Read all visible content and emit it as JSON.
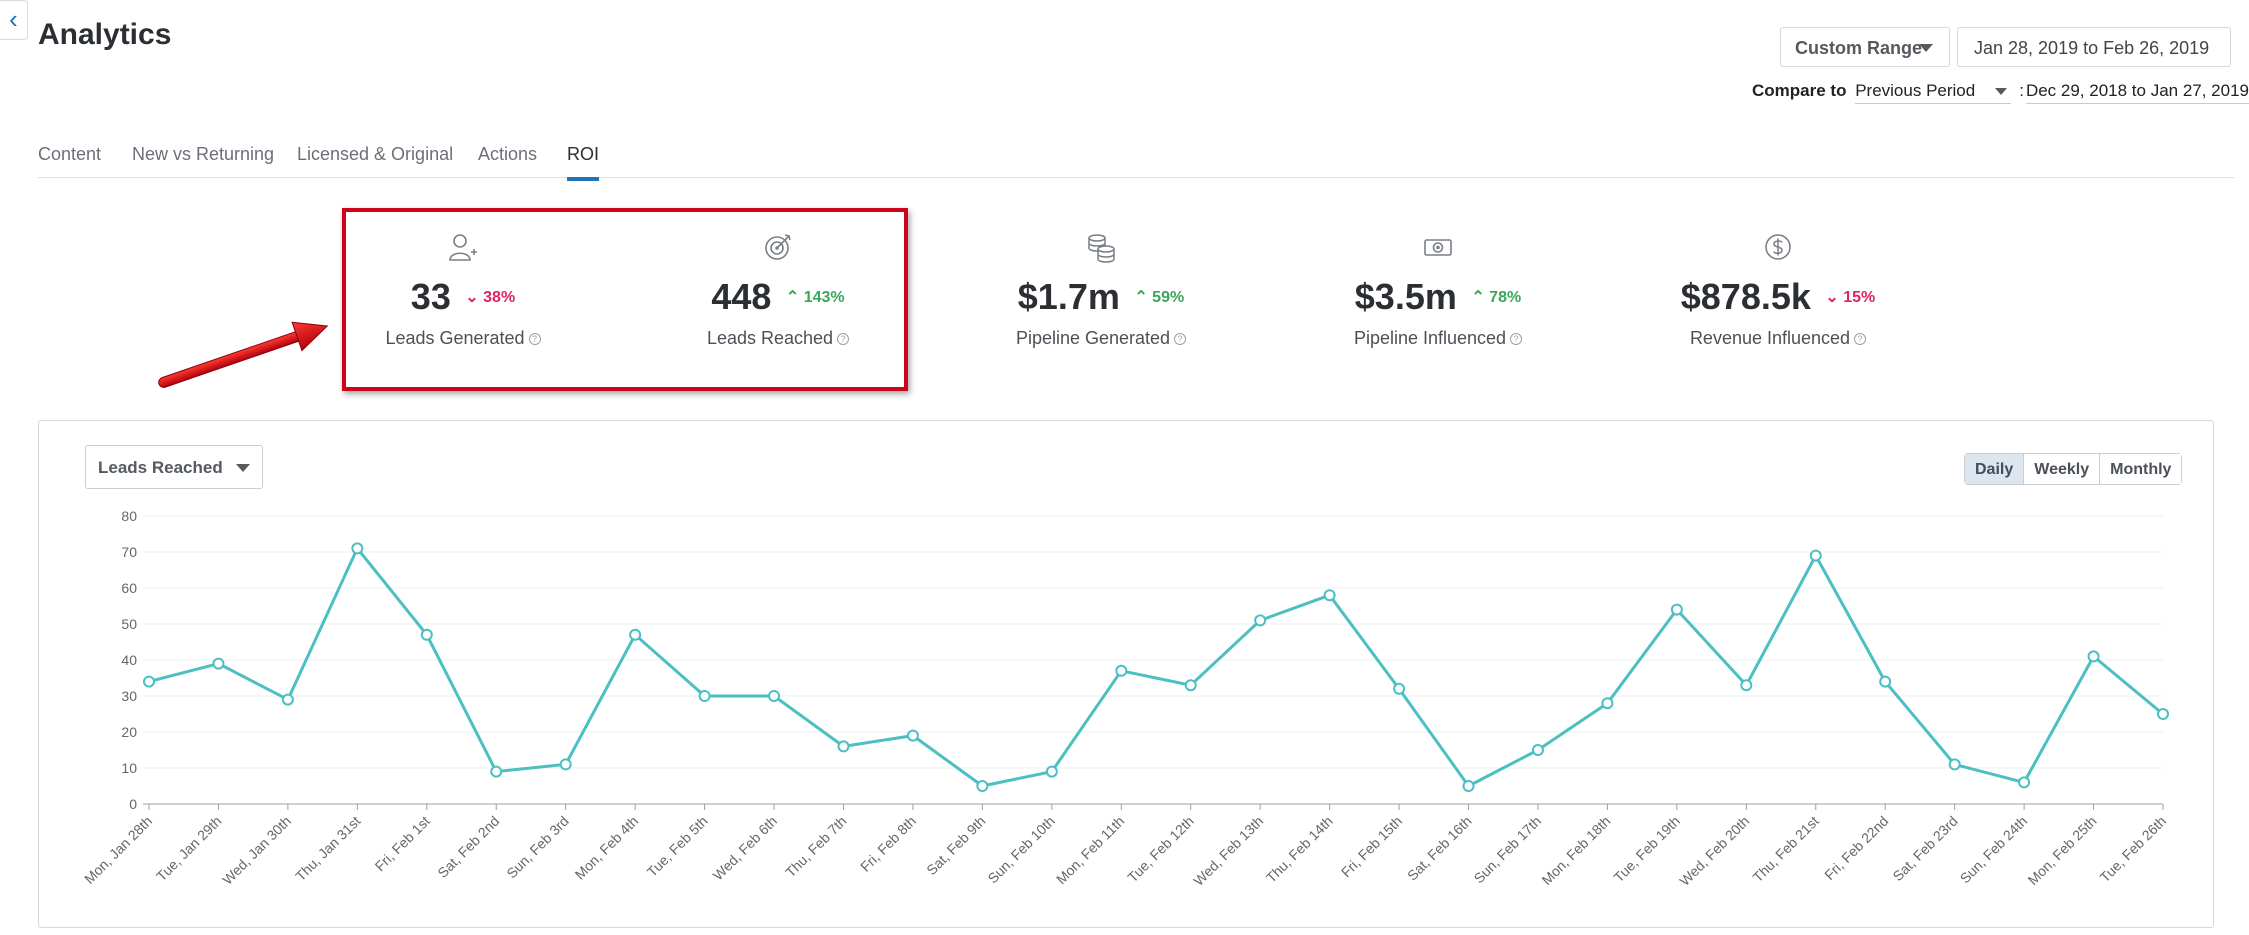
{
  "header": {
    "back_icon": "chevron-left-icon",
    "title": "Analytics",
    "range_type": "Custom Range",
    "date_range": "Jan 28, 2019 to Feb 26, 2019",
    "compare_label": "Compare to",
    "compare_period": "Previous Period",
    "compare_colon": ":",
    "compare_range": "Dec 29, 2018 to Jan 27, 2019"
  },
  "tabs": [
    {
      "label": "Content",
      "active": false
    },
    {
      "label": "New vs Returning",
      "active": false
    },
    {
      "label": "Licensed & Original",
      "active": false
    },
    {
      "label": "Actions",
      "active": false
    },
    {
      "label": "ROI",
      "active": true
    }
  ],
  "metrics": [
    {
      "icon": "user-plus-icon",
      "value": "33",
      "delta": "38%",
      "direction": "down",
      "label": "Leads Generated"
    },
    {
      "icon": "target-icon",
      "value": "448",
      "delta": "143%",
      "direction": "up",
      "label": "Leads Reached"
    },
    {
      "icon": "coin-stack-icon",
      "value": "$1.7m",
      "delta": "59%",
      "direction": "up",
      "label": "Pipeline Generated"
    },
    {
      "icon": "banknote-icon",
      "value": "$3.5m",
      "delta": "78%",
      "direction": "up",
      "label": "Pipeline Influenced"
    },
    {
      "icon": "dollar-circle-icon",
      "value": "$878.5k",
      "delta": "15%",
      "direction": "down",
      "label": "Revenue Influenced"
    }
  ],
  "metric_help_icon": "?",
  "chart_panel": {
    "metric_select": "Leads Reached",
    "granularity": [
      "Daily",
      "Weekly",
      "Monthly"
    ],
    "active_granularity": "Daily"
  },
  "colors": {
    "line": "#4bbfc2",
    "delta_down": "#e0245e",
    "delta_up": "#3aa757",
    "highlight": "#d0021b",
    "active_tab": "#1f73b7"
  },
  "chart_data": {
    "type": "line",
    "categories": [
      "Mon, Jan 28th",
      "Tue, Jan 29th",
      "Wed, Jan 30th",
      "Thu, Jan 31st",
      "Fri, Feb 1st",
      "Sat, Feb 2nd",
      "Sun, Feb 3rd",
      "Mon, Feb 4th",
      "Tue, Feb 5th",
      "Wed, Feb 6th",
      "Thu, Feb 7th",
      "Fri, Feb 8th",
      "Sat, Feb 9th",
      "Sun, Feb 10th",
      "Mon, Feb 11th",
      "Tue, Feb 12th",
      "Wed, Feb 13th",
      "Thu, Feb 14th",
      "Fri, Feb 15th",
      "Sat, Feb 16th",
      "Sun, Feb 17th",
      "Mon, Feb 18th",
      "Tue, Feb 19th",
      "Wed, Feb 20th",
      "Thu, Feb 21st",
      "Fri, Feb 22nd",
      "Sat, Feb 23rd",
      "Sun, Feb 24th",
      "Mon, Feb 25th",
      "Tue, Feb 26th"
    ],
    "values": [
      34,
      39,
      29,
      71,
      47,
      9,
      11,
      47,
      30,
      30,
      16,
      19,
      5,
      9,
      37,
      33,
      51,
      58,
      32,
      5,
      15,
      28,
      54,
      33,
      69,
      34,
      11,
      6,
      41,
      25
    ],
    "ylim": [
      0,
      80
    ],
    "yticks": [
      0,
      10,
      20,
      30,
      40,
      50,
      60,
      70,
      80
    ],
    "grid": true,
    "title": "",
    "xlabel": "",
    "ylabel": ""
  }
}
